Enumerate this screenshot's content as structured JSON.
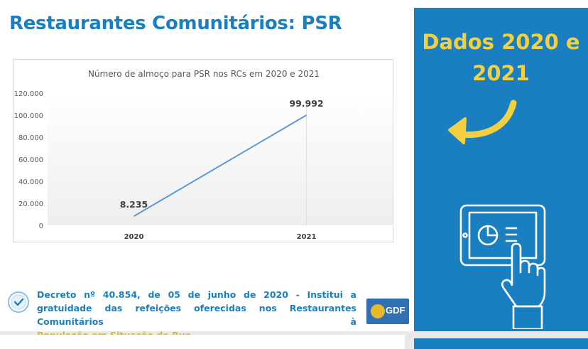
{
  "slide": {
    "title": "Restaurantes Comunitários: PSR"
  },
  "chart_data": {
    "type": "line",
    "title": "Número de almoço para PSR nos RCs em 2020 e 2021",
    "categories": [
      "2020",
      "2021"
    ],
    "values": [
      8235,
      99992
    ],
    "value_labels": [
      "8.235",
      "99.992"
    ],
    "yticks": [
      "0",
      "20.000",
      "40.000",
      "60.000",
      "80.000",
      "100.000",
      "120.000"
    ],
    "ylim": [
      0,
      120000
    ],
    "xlabel": "",
    "ylabel": "",
    "line_color": "#5b9bd5"
  },
  "decree": {
    "text": "Decreto nº 40.854, de 05 de junho de 2020 - Institui a gratuidade das refeições oferecidas nos Restaurantes Comunitários à",
    "highlight": "População em Situação de Rua."
  },
  "logo": {
    "text": "GDF"
  },
  "panel": {
    "title": "Dados 2020 e 2021",
    "arrow_icon": "curved-arrow-left-icon",
    "tablet_icon": "tablet-touch-icon"
  },
  "colors": {
    "brand_blue": "#1a7fc1",
    "accent_yellow": "#f4d03f"
  }
}
